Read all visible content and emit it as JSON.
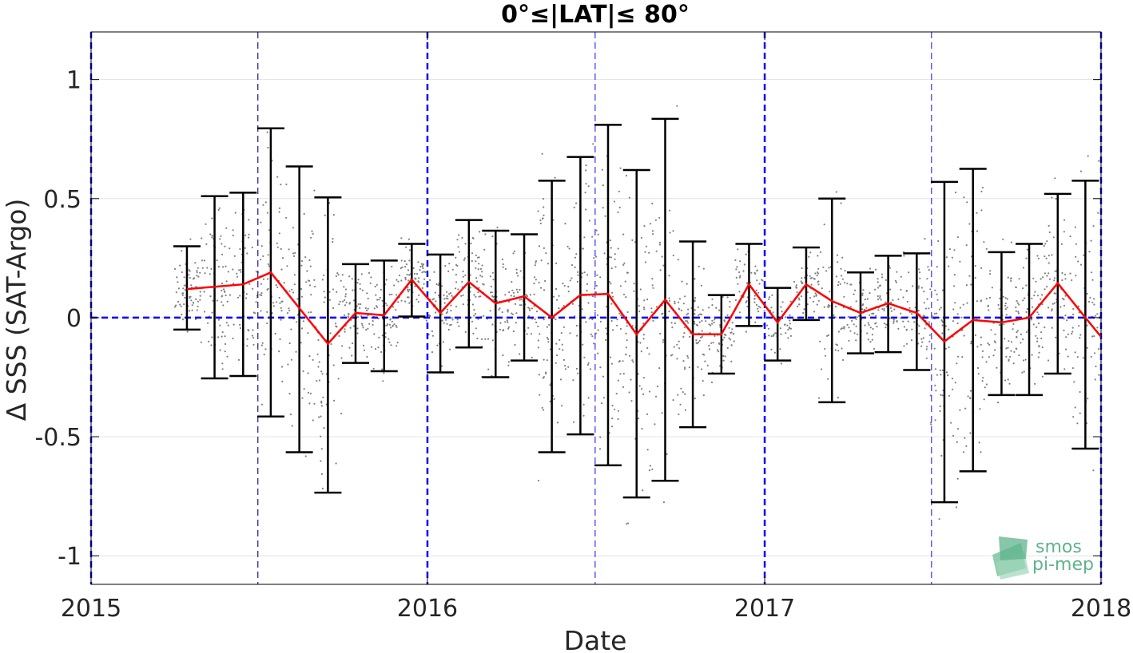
{
  "chart_data": {
    "type": "line",
    "title": "0°≤|LAT|≤ 80°",
    "xlabel": "Date",
    "ylabel": "Δ SSS (SAT-Argo)",
    "xlim": [
      "2015-01-01",
      "2018-01-01"
    ],
    "ylim": [
      -1.12,
      1.2
    ],
    "x_ticks": [
      "2015",
      "2016",
      "2017",
      "2018"
    ],
    "y_ticks": [
      "-1",
      "-0.5",
      "0",
      "0.5",
      "1"
    ],
    "y_tick_values": [
      -1,
      -0.5,
      0,
      0.5,
      1
    ],
    "grid": true,
    "zero_line": 0,
    "year_lines": [
      "2015-01-01",
      "2016-01-01",
      "2017-01-01",
      "2018-01-01"
    ],
    "half_year_lines": [
      "2015-07-01",
      "2016-07-01",
      "2017-07-01"
    ],
    "series": [
      {
        "kind": "mean-with-errorbars",
        "color": "#ff0000",
        "errorbar_color": "#000000",
        "x": [
          "2015-04-15",
          "2015-05-15",
          "2015-06-15",
          "2015-07-15",
          "2015-08-15",
          "2015-09-15",
          "2015-10-15",
          "2015-11-15",
          "2015-12-15",
          "2016-01-15",
          "2016-02-15",
          "2016-03-15",
          "2016-04-15",
          "2016-05-15",
          "2016-06-15",
          "2016-07-15",
          "2016-08-15",
          "2016-09-15",
          "2016-10-15",
          "2016-11-15",
          "2016-12-15",
          "2017-01-15",
          "2017-02-15",
          "2017-03-15",
          "2017-04-15",
          "2017-05-15",
          "2017-06-15",
          "2017-07-15",
          "2017-08-15",
          "2017-09-15",
          "2017-10-15",
          "2017-11-15",
          "2017-12-15",
          "2018-01-15"
        ],
        "y": [
          0.12,
          0.13,
          0.14,
          0.19,
          0.04,
          -0.11,
          0.02,
          0.01,
          0.16,
          0.02,
          0.15,
          0.06,
          0.09,
          0.0,
          0.095,
          0.1,
          -0.07,
          0.075,
          -0.07,
          -0.07,
          0.14,
          -0.02,
          0.14,
          0.07,
          0.02,
          0.06,
          0.02,
          -0.1,
          -0.01,
          -0.02,
          0.0,
          0.145,
          0.0,
          -0.08
        ],
        "upper": [
          0.3,
          0.51,
          0.525,
          0.795,
          0.635,
          0.505,
          0.225,
          0.24,
          0.31,
          0.265,
          0.41,
          0.365,
          0.35,
          0.575,
          0.675,
          0.81,
          0.62,
          0.835,
          0.32,
          0.095,
          0.31,
          0.125,
          0.295,
          0.5,
          0.19,
          0.26,
          0.27,
          0.57,
          0.625,
          0.275,
          0.31,
          0.52,
          0.575,
          null
        ],
        "lower": [
          -0.05,
          -0.255,
          -0.245,
          -0.415,
          -0.565,
          -0.735,
          -0.19,
          -0.225,
          0.005,
          -0.23,
          -0.125,
          -0.25,
          -0.18,
          -0.565,
          -0.49,
          -0.62,
          -0.755,
          -0.685,
          -0.46,
          -0.235,
          -0.035,
          -0.18,
          -0.01,
          -0.355,
          -0.15,
          -0.145,
          -0.22,
          -0.775,
          -0.645,
          -0.325,
          -0.325,
          -0.235,
          -0.55,
          null
        ]
      }
    ],
    "scatter": {
      "color": "#808080",
      "note_count": 2200
    }
  },
  "logo": {
    "line1": "smos",
    "line2": "pi-mep"
  }
}
